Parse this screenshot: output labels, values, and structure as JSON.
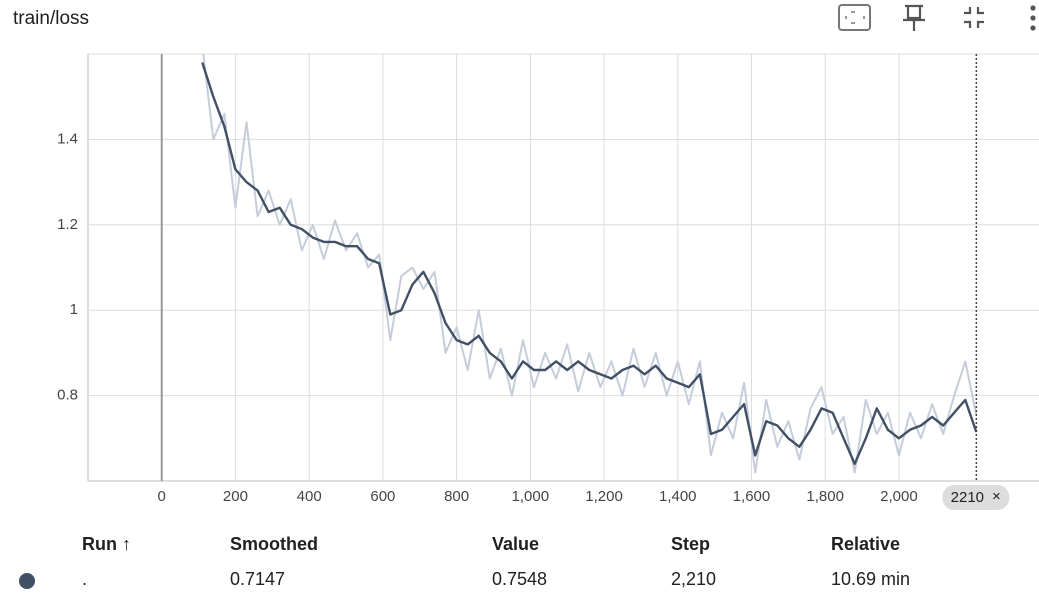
{
  "header": {
    "title": "train/loss"
  },
  "chart_data": {
    "type": "line",
    "x": [
      110,
      140,
      170,
      200,
      230,
      260,
      290,
      320,
      350,
      380,
      410,
      440,
      470,
      500,
      530,
      560,
      590,
      620,
      650,
      680,
      710,
      740,
      770,
      800,
      830,
      860,
      890,
      920,
      950,
      980,
      1010,
      1040,
      1070,
      1100,
      1130,
      1160,
      1190,
      1220,
      1250,
      1280,
      1310,
      1340,
      1370,
      1400,
      1430,
      1460,
      1490,
      1520,
      1550,
      1580,
      1610,
      1640,
      1670,
      1700,
      1730,
      1760,
      1790,
      1820,
      1850,
      1880,
      1910,
      1940,
      1970,
      2000,
      2030,
      2060,
      2090,
      2120,
      2150,
      2180,
      2210
    ],
    "series": [
      {
        "color": "#c5cdda",
        "values": [
          1.62,
          1.4,
          1.46,
          1.24,
          1.44,
          1.22,
          1.28,
          1.2,
          1.26,
          1.14,
          1.2,
          1.12,
          1.21,
          1.14,
          1.18,
          1.1,
          1.13,
          0.93,
          1.08,
          1.1,
          1.05,
          1.09,
          0.9,
          0.96,
          0.86,
          1.0,
          0.84,
          0.91,
          0.8,
          0.93,
          0.82,
          0.9,
          0.84,
          0.92,
          0.81,
          0.9,
          0.82,
          0.88,
          0.8,
          0.91,
          0.82,
          0.9,
          0.8,
          0.88,
          0.78,
          0.88,
          0.66,
          0.76,
          0.7,
          0.83,
          0.62,
          0.79,
          0.68,
          0.74,
          0.65,
          0.77,
          0.82,
          0.71,
          0.75,
          0.62,
          0.79,
          0.71,
          0.76,
          0.66,
          0.76,
          0.7,
          0.78,
          0.71,
          0.8,
          0.88,
          0.7548
        ]
      },
      {
        "color": "#425066",
        "values": [
          1.58,
          1.5,
          1.43,
          1.33,
          1.3,
          1.28,
          1.23,
          1.24,
          1.2,
          1.19,
          1.17,
          1.16,
          1.16,
          1.15,
          1.15,
          1.12,
          1.11,
          0.99,
          1.0,
          1.06,
          1.09,
          1.04,
          0.97,
          0.93,
          0.92,
          0.94,
          0.9,
          0.88,
          0.84,
          0.88,
          0.86,
          0.86,
          0.88,
          0.86,
          0.88,
          0.86,
          0.85,
          0.84,
          0.86,
          0.87,
          0.85,
          0.87,
          0.84,
          0.83,
          0.82,
          0.85,
          0.71,
          0.72,
          0.75,
          0.78,
          0.66,
          0.74,
          0.73,
          0.7,
          0.68,
          0.72,
          0.77,
          0.76,
          0.7,
          0.64,
          0.7,
          0.77,
          0.72,
          0.7,
          0.72,
          0.73,
          0.75,
          0.73,
          0.76,
          0.79,
          0.7147
        ]
      }
    ],
    "xlim": [
      -200,
      2380
    ],
    "ylim": [
      0.6,
      1.6
    ],
    "xticks": [
      0,
      200,
      400,
      600,
      800,
      {
        "value": 1000,
        "label": "1,000"
      },
      {
        "value": 1200,
        "label": "1,200"
      },
      {
        "value": 1400,
        "label": "1,400"
      },
      {
        "value": 1600,
        "label": "1,600"
      },
      {
        "value": 1800,
        "label": "1,800"
      },
      {
        "value": 2000,
        "label": "2,000"
      }
    ],
    "yticks": [
      0.8,
      1,
      1.2,
      1.4
    ],
    "grid": true,
    "cursor": 2210
  },
  "table": {
    "headers": [
      "Run ↑",
      "Smoothed",
      "Value",
      "Step",
      "Relative"
    ],
    "rows": [
      [
        ".",
        "0.7147",
        "0.7548",
        "2,210",
        "10.69 min"
      ]
    ]
  }
}
